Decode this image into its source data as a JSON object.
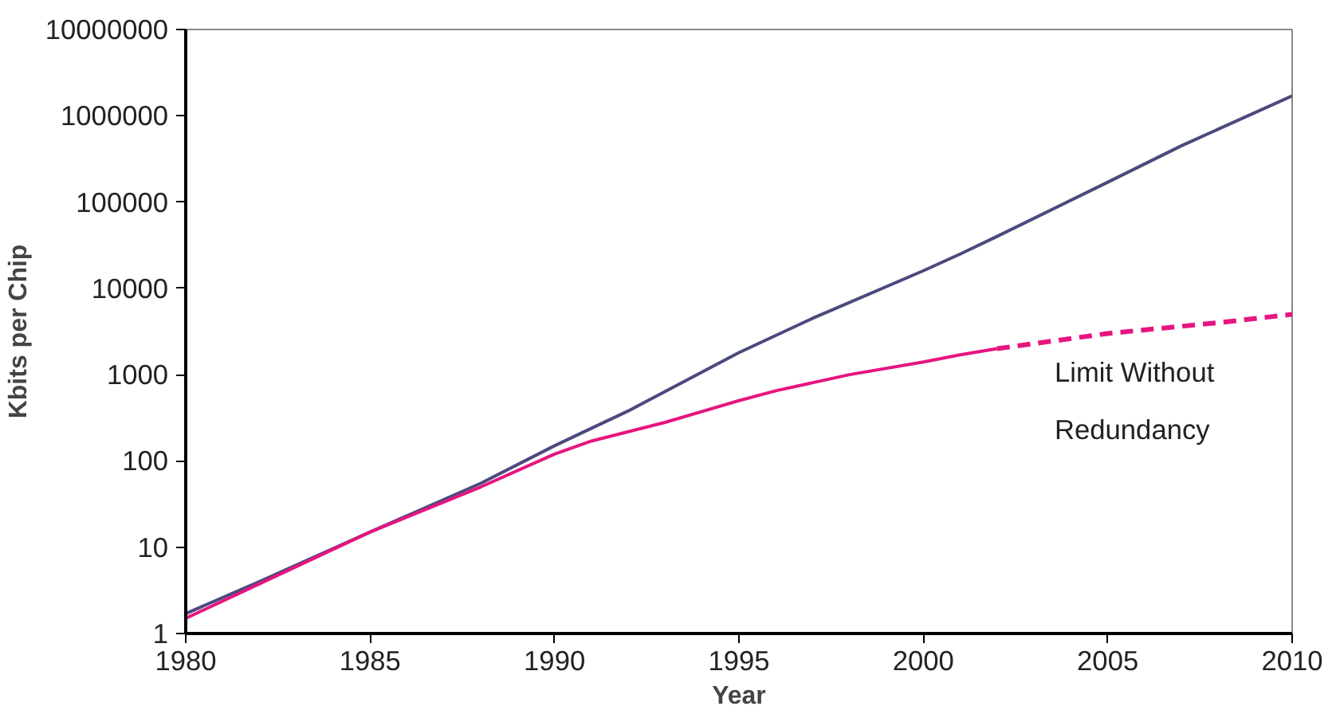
{
  "chart_data": {
    "type": "line",
    "xlabel": "Year",
    "ylabel": "Kbits per Chip",
    "log": "y",
    "grid": false,
    "xlim": [
      1980,
      2010
    ],
    "xticks": [
      1980,
      1985,
      1990,
      1995,
      2000,
      2005,
      2010
    ],
    "ylim": [
      1,
      10000000
    ],
    "yticks": [
      1,
      10,
      100,
      1000,
      10000,
      100000,
      1000000,
      10000000
    ],
    "series": [
      {
        "color": "#4b4a7e",
        "line_style": "solid",
        "x": [
          1980,
          1982,
          1985,
          1988,
          1990,
          1992,
          1995,
          1997,
          2000,
          2001,
          2002,
          2005,
          2007,
          2010
        ],
        "values": [
          1.7,
          4,
          15,
          55,
          150,
          380,
          1800,
          4500,
          16000,
          25000,
          40000,
          170000,
          450000,
          1700000
        ]
      },
      {
        "color": "#e6157f",
        "line_style": "solid",
        "x": [
          1980,
          1985,
          1988,
          1990,
          1991,
          1993,
          1995,
          1996,
          1998,
          2000,
          2001,
          2002
        ],
        "values": [
          1.5,
          15,
          50,
          120,
          170,
          280,
          500,
          650,
          1000,
          1400,
          1700,
          2000
        ]
      },
      {
        "color": "#e6157f",
        "line_style": "dashed",
        "x": [
          2002,
          2005,
          2008,
          2010
        ],
        "values": [
          2000,
          3000,
          4000,
          5000
        ]
      }
    ],
    "annotations": [
      "Limit Without\nRedundancy"
    ]
  }
}
